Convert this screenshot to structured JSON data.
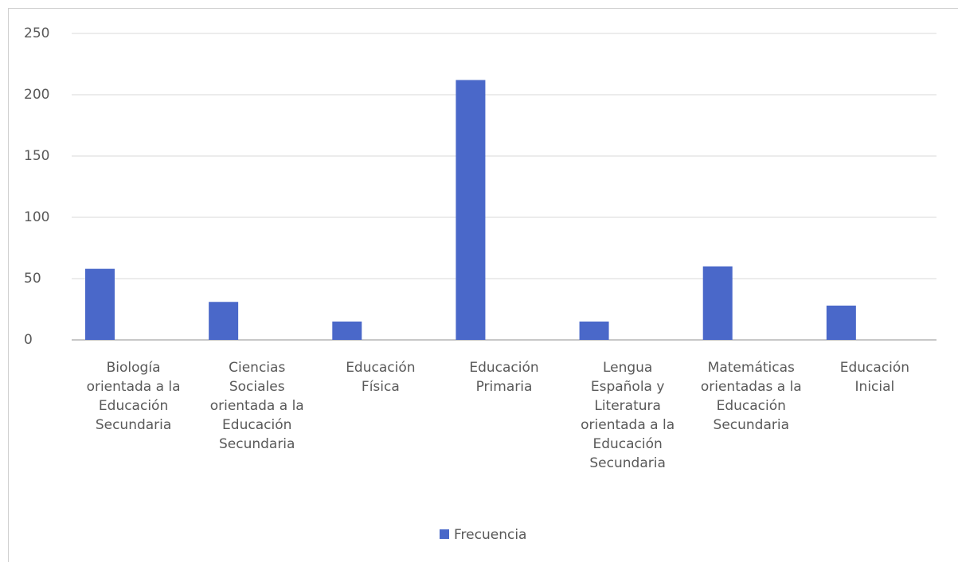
{
  "chart_data": {
    "type": "bar",
    "categories": [
      "Biología orientada a la Educación Secundaria",
      "Ciencias Sociales orientada a la Educación Secundaria",
      "Educación Física",
      "Educación Primaria",
      "Lengua Española y Literatura orientada a la Educación Secundaria",
      "Matemáticas orientadas a la Educación Secundaria",
      "Educación Inicial"
    ],
    "series": [
      {
        "name": "Frecuencia",
        "color": "#4a68c9",
        "values": [
          58,
          31,
          15,
          212,
          15,
          60,
          28
        ]
      }
    ],
    "ylim": [
      0,
      250
    ],
    "yticks": [
      0,
      50,
      100,
      150,
      200,
      250
    ],
    "grid": true,
    "legend": "bottom"
  }
}
